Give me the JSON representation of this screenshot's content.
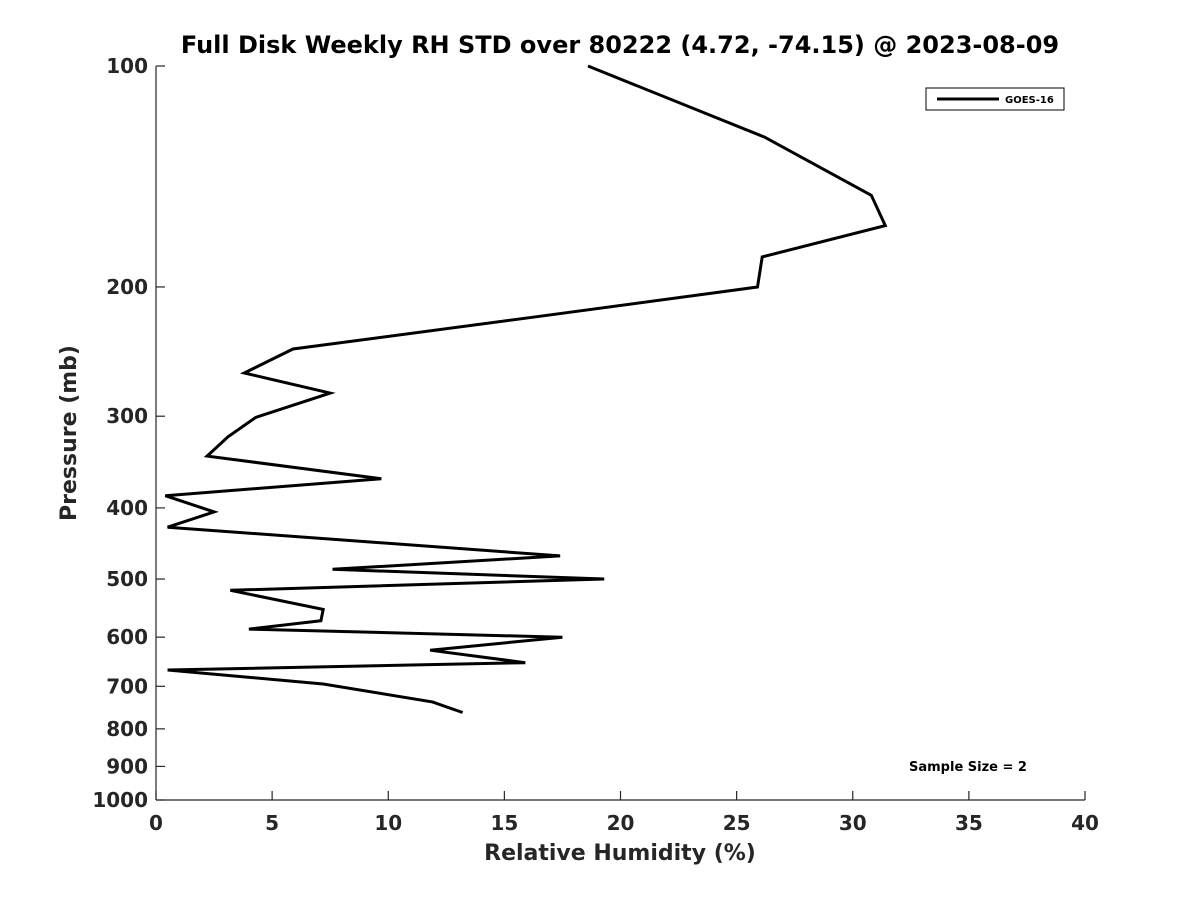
{
  "chart_data": {
    "type": "line",
    "title": "Full Disk Weekly RH STD over 80222 (4.72, -74.15) @ 2023-08-09",
    "xlabel": "Relative Humidity (%)",
    "ylabel": "Pressure (mb)",
    "xlim": [
      0,
      40
    ],
    "ylim": [
      1000,
      100
    ],
    "yscale": "log",
    "x_ticks": [
      0,
      5,
      10,
      15,
      20,
      25,
      30,
      35,
      40
    ],
    "x_tick_labels": [
      "0",
      "5",
      "10",
      "15",
      "20",
      "25",
      "30",
      "35",
      "40"
    ],
    "y_ticks": [
      100,
      200,
      300,
      400,
      500,
      600,
      700,
      800,
      900,
      1000
    ],
    "y_tick_labels": [
      "100",
      "200",
      "300",
      "400",
      "500",
      "600",
      "700",
      "800",
      "900",
      "1000"
    ],
    "grid": false,
    "legend_position": "top-right",
    "series": [
      {
        "name": "GOES-16",
        "color": "#000000",
        "x": [
          18.6,
          26.2,
          30.8,
          31.4,
          26.1,
          25.9,
          16.2,
          5.9,
          3.8,
          7.5,
          4.3,
          3.1,
          2.2,
          9.7,
          0.4,
          2.5,
          0.5,
          17.4,
          7.6,
          19.3,
          3.2,
          7.2,
          7.1,
          4.0,
          17.5,
          11.8,
          15.9,
          0.5,
          7.2,
          11.9,
          13.2
        ],
        "y": [
          100,
          125,
          150,
          165,
          182,
          200,
          220,
          243,
          262,
          279,
          301,
          320,
          340,
          365,
          385,
          405,
          425,
          465,
          485,
          500,
          518,
          550,
          570,
          585,
          600,
          625,
          650,
          665,
          695,
          735,
          760
        ]
      }
    ],
    "annotations": [
      {
        "text": "Sample Size = 2",
        "position": "bottom-right"
      }
    ]
  }
}
